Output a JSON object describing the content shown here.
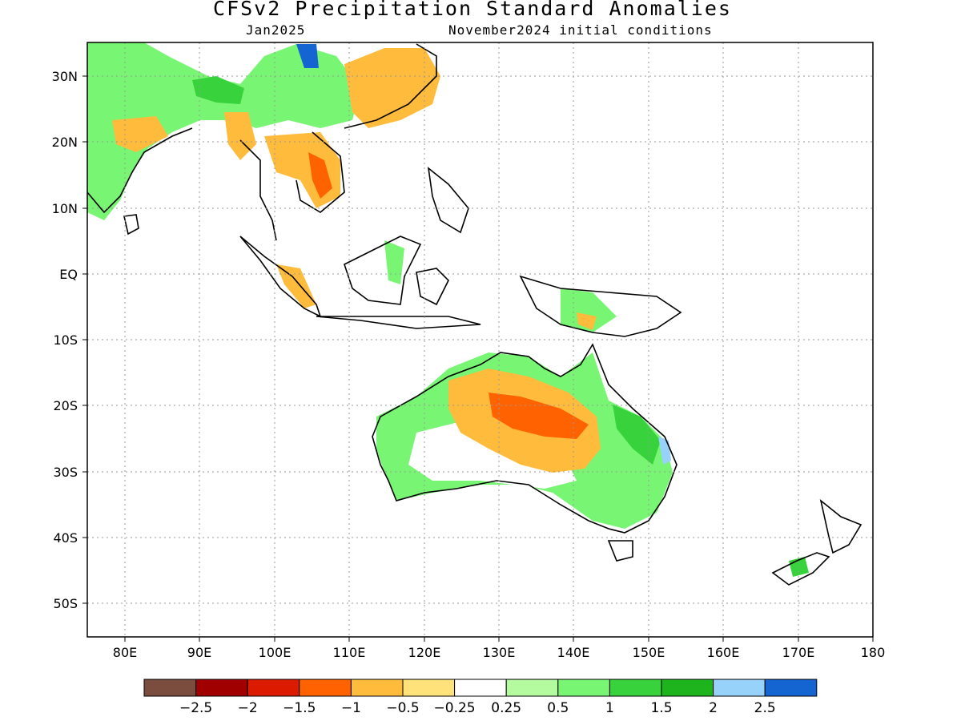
{
  "header": {
    "title": "CFSv2 Precipitation Standard Anomalies",
    "valid_month": "Jan2025",
    "init_conditions": "November2024 initial conditions"
  },
  "map": {
    "lon_range": [
      75,
      180
    ],
    "lat_range": [
      -55,
      35
    ],
    "lon_ticks": [
      "80E",
      "90E",
      "100E",
      "110E",
      "120E",
      "130E",
      "140E",
      "150E",
      "160E",
      "170E",
      "180"
    ],
    "lat_ticks": [
      "30N",
      "20N",
      "10N",
      "EQ",
      "10S",
      "20S",
      "30S",
      "40S",
      "50S"
    ],
    "grid": true,
    "land_outline_color": "#000000"
  },
  "colorbar": {
    "colors": [
      "#7a4d3e",
      "#a00000",
      "#dc1a00",
      "#ff6200",
      "#ffbb3c",
      "#ffe27a",
      "#ffffff",
      "#b4fa9f",
      "#78f573",
      "#37d23c",
      "#1eb41e",
      "#96d2fa",
      "#1464d2"
    ],
    "labels": [
      "-2.5",
      "-2",
      "-1.5",
      "-1",
      "-0.5",
      "-0.25",
      "0.25",
      "0.5",
      "1",
      "1.5",
      "2",
      "2.5"
    ]
  },
  "chart_data": {
    "type": "heatmap",
    "title": "CFSv2 Precipitation Standard Anomalies",
    "subtitle": "Jan2025  November2024 initial conditions",
    "x_range": [
      75,
      180
    ],
    "y_range": [
      -55,
      35
    ],
    "color_scale_bins": [
      -2.5,
      -2,
      -1.5,
      -1,
      -0.5,
      -0.25,
      0.25,
      0.5,
      1,
      1.5,
      2,
      2.5
    ]
  }
}
